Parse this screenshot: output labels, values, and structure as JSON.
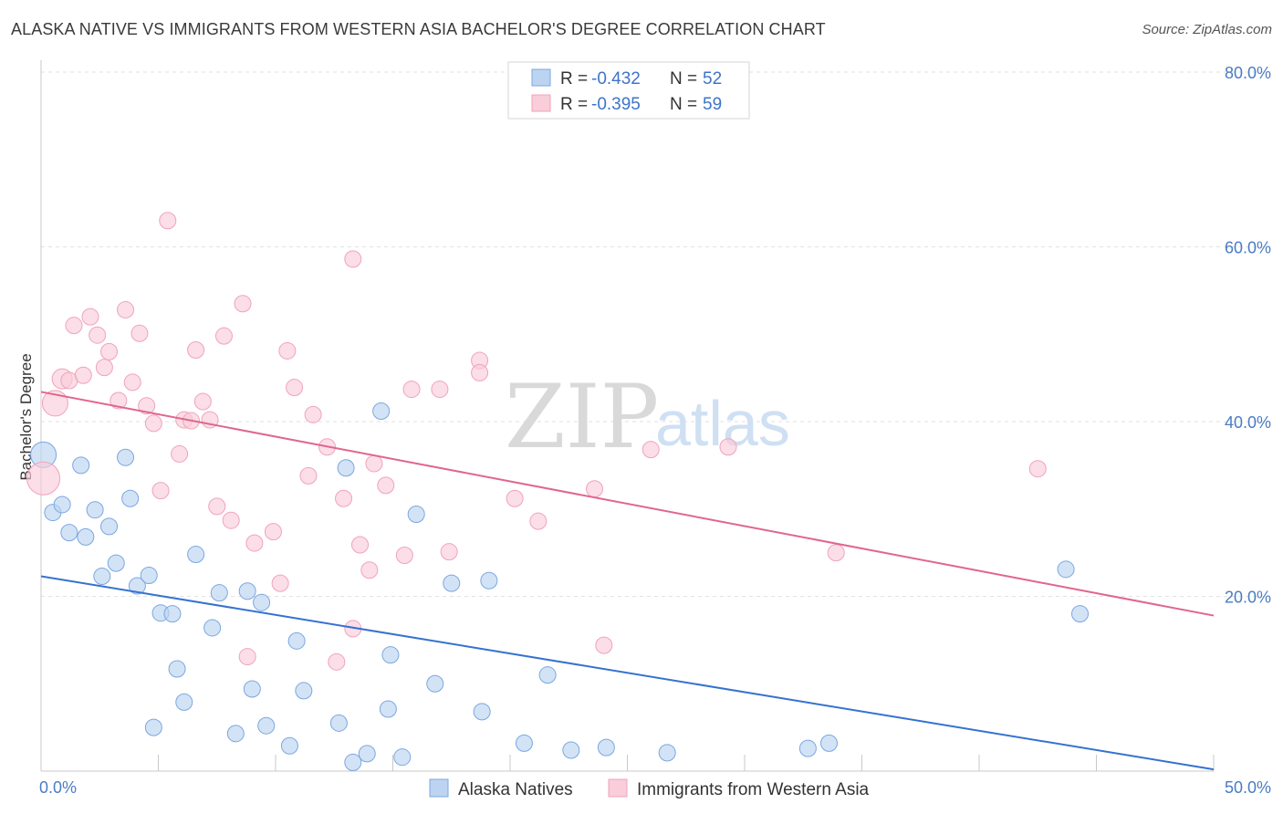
{
  "title": "ALASKA NATIVE VS IMMIGRANTS FROM WESTERN ASIA BACHELOR'S DEGREE CORRELATION CHART",
  "source": "Source: ZipAtlas.com",
  "watermark": {
    "part1": "ZIP",
    "part2": "atlas"
  },
  "legend": {
    "rows": [
      {
        "r_label": "R = ",
        "r_value": "-0.432",
        "n_label": "N = ",
        "n_value": "52"
      },
      {
        "r_label": "R = ",
        "r_value": "-0.395",
        "n_label": "N = ",
        "n_value": "59"
      }
    ]
  },
  "chart_data": {
    "type": "scatter",
    "title": "ALASKA NATIVE VS IMMIGRANTS FROM WESTERN ASIA BACHELOR'S DEGREE CORRELATION CHART",
    "xlabel": "",
    "ylabel": "Bachelor's Degree",
    "xlim": [
      0,
      50
    ],
    "ylim": [
      0,
      80
    ],
    "x_tick_labels": [
      "0.0%",
      "50.0%"
    ],
    "y_ticks": [
      20,
      40,
      60,
      80
    ],
    "y_tick_labels": [
      "20.0%",
      "40.0%",
      "60.0%",
      "80.0%"
    ],
    "grid": true,
    "legend_position": "top-center",
    "series": [
      {
        "name": "Alaska Natives",
        "color": "#7ba7e0",
        "fill": "#bcd4f1",
        "trend": {
          "x": [
            0,
            50
          ],
          "y": [
            22.3,
            0.2
          ],
          "color": "#3572cf"
        },
        "points": [
          [
            0.1,
            36.2,
            14
          ],
          [
            0.5,
            29.6,
            9
          ],
          [
            0.9,
            30.5,
            9
          ],
          [
            1.2,
            27.3,
            9
          ],
          [
            1.7,
            35.0,
            9
          ],
          [
            1.9,
            26.8,
            9
          ],
          [
            2.3,
            29.9,
            9
          ],
          [
            2.6,
            22.3,
            9
          ],
          [
            2.9,
            28.0,
            9
          ],
          [
            3.2,
            23.8,
            9
          ],
          [
            3.6,
            35.9,
            9
          ],
          [
            3.8,
            31.2,
            9
          ],
          [
            4.1,
            21.2,
            9
          ],
          [
            4.6,
            22.4,
            9
          ],
          [
            4.8,
            5.0,
            9
          ],
          [
            5.1,
            18.1,
            9
          ],
          [
            5.6,
            18.0,
            9
          ],
          [
            5.8,
            11.7,
            9
          ],
          [
            6.1,
            7.9,
            9
          ],
          [
            6.6,
            24.8,
            9
          ],
          [
            7.3,
            16.4,
            9
          ],
          [
            7.6,
            20.4,
            9
          ],
          [
            8.3,
            4.3,
            9
          ],
          [
            8.8,
            20.6,
            9
          ],
          [
            9.0,
            9.4,
            9
          ],
          [
            9.4,
            19.3,
            9
          ],
          [
            9.6,
            5.2,
            9
          ],
          [
            10.6,
            2.9,
            9
          ],
          [
            10.9,
            14.9,
            9
          ],
          [
            11.2,
            9.2,
            9
          ],
          [
            12.7,
            5.5,
            9
          ],
          [
            13.0,
            34.7,
            9
          ],
          [
            13.3,
            1.0,
            9
          ],
          [
            13.9,
            2.0,
            9
          ],
          [
            14.5,
            41.2,
            9
          ],
          [
            14.8,
            7.1,
            9
          ],
          [
            14.9,
            13.3,
            9
          ],
          [
            15.4,
            1.6,
            9
          ],
          [
            16.0,
            29.4,
            9
          ],
          [
            16.8,
            10.0,
            9
          ],
          [
            17.5,
            21.5,
            9
          ],
          [
            18.8,
            6.8,
            9
          ],
          [
            19.1,
            21.8,
            9
          ],
          [
            20.6,
            3.2,
            9
          ],
          [
            21.6,
            11.0,
            9
          ],
          [
            22.6,
            2.4,
            9
          ],
          [
            24.1,
            2.7,
            9
          ],
          [
            26.7,
            2.1,
            9
          ],
          [
            32.7,
            2.6,
            9
          ],
          [
            33.6,
            3.2,
            9
          ],
          [
            43.7,
            23.1,
            9
          ],
          [
            44.3,
            18.0,
            9
          ]
        ]
      },
      {
        "name": "Immigrants from Western Asia",
        "color": "#f0a3bb",
        "fill": "#f9cdda",
        "trend": {
          "x": [
            0,
            50
          ],
          "y": [
            43.4,
            17.8
          ],
          "color": "#e0668d"
        },
        "points": [
          [
            0.1,
            33.5,
            18
          ],
          [
            0.6,
            42.1,
            14
          ],
          [
            0.9,
            44.9,
            11
          ],
          [
            1.2,
            44.7,
            9
          ],
          [
            1.4,
            51.0,
            9
          ],
          [
            1.8,
            45.3,
            9
          ],
          [
            2.1,
            52.0,
            9
          ],
          [
            2.4,
            49.9,
            9
          ],
          [
            2.7,
            46.2,
            9
          ],
          [
            2.9,
            48.0,
            9
          ],
          [
            3.3,
            42.4,
            9
          ],
          [
            3.6,
            52.8,
            9
          ],
          [
            3.9,
            44.5,
            9
          ],
          [
            4.2,
            50.1,
            9
          ],
          [
            4.5,
            41.8,
            9
          ],
          [
            4.8,
            39.8,
            9
          ],
          [
            5.1,
            32.1,
            9
          ],
          [
            5.4,
            63.0,
            9
          ],
          [
            5.9,
            36.3,
            9
          ],
          [
            6.1,
            40.2,
            9
          ],
          [
            6.4,
            40.1,
            9
          ],
          [
            6.6,
            48.2,
            9
          ],
          [
            6.9,
            42.3,
            9
          ],
          [
            7.2,
            40.2,
            9
          ],
          [
            7.5,
            30.3,
            9
          ],
          [
            7.8,
            49.8,
            9
          ],
          [
            8.1,
            28.7,
            9
          ],
          [
            8.6,
            53.5,
            9
          ],
          [
            8.8,
            13.1,
            9
          ],
          [
            9.1,
            26.1,
            9
          ],
          [
            9.9,
            27.4,
            9
          ],
          [
            10.2,
            21.5,
            9
          ],
          [
            10.5,
            48.1,
            9
          ],
          [
            10.8,
            43.9,
            9
          ],
          [
            11.4,
            33.8,
            9
          ],
          [
            11.6,
            40.8,
            9
          ],
          [
            12.2,
            37.1,
            9
          ],
          [
            12.6,
            12.5,
            9
          ],
          [
            12.9,
            31.2,
            9
          ],
          [
            13.3,
            58.6,
            9
          ],
          [
            13.3,
            16.3,
            9
          ],
          [
            13.6,
            25.9,
            9
          ],
          [
            14.0,
            23.0,
            9
          ],
          [
            14.2,
            35.2,
            9
          ],
          [
            14.7,
            32.7,
            9
          ],
          [
            15.5,
            24.7,
            9
          ],
          [
            15.8,
            43.7,
            9
          ],
          [
            17.0,
            43.7,
            9
          ],
          [
            17.4,
            25.1,
            9
          ],
          [
            18.7,
            47.0,
            9
          ],
          [
            18.7,
            45.6,
            9
          ],
          [
            20.2,
            31.2,
            9
          ],
          [
            21.2,
            28.6,
            9
          ],
          [
            23.6,
            32.3,
            9
          ],
          [
            24.0,
            14.4,
            9
          ],
          [
            26.0,
            36.8,
            9
          ],
          [
            29.3,
            37.1,
            9
          ],
          [
            33.9,
            25.0,
            9
          ],
          [
            42.5,
            34.6,
            9
          ]
        ]
      }
    ]
  }
}
